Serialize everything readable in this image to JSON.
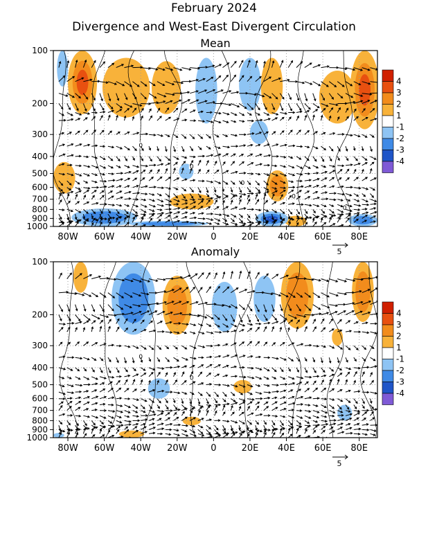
{
  "header": {
    "title": "February 2024",
    "subtitle": "Divergence and West-East Divergent Circulation"
  },
  "colors": {
    "shading": [
      "#7f5ad6",
      "#1f55c8",
      "#3f8ae6",
      "#8ec4f4",
      "#ffffff",
      "#f8b23a",
      "#f28c1c",
      "#e85010",
      "#d02000"
    ],
    "contour": "#000000",
    "grid": "#9a9a9a"
  },
  "chart_data": [
    {
      "type": "heatmap",
      "title": "Mean",
      "x_ticks": [
        "80W",
        "60W",
        "40W",
        "20W",
        "0",
        "20E",
        "40E",
        "60E",
        "80E"
      ],
      "x_tick_values": [
        -80,
        -60,
        -40,
        -20,
        0,
        20,
        40,
        60,
        80
      ],
      "xlim": [
        -88,
        90
      ],
      "y_ticks": [
        "100",
        "200",
        "300",
        "400",
        "500",
        "600",
        "700",
        "800",
        "900",
        "1000"
      ],
      "y_tick_values": [
        100,
        200,
        300,
        400,
        500,
        600,
        700,
        800,
        900,
        1000
      ],
      "ylim": [
        1000,
        100
      ],
      "y_scale": "log",
      "colorbar": {
        "levels": [
          "4",
          "3",
          "2",
          "1",
          "-1",
          "-2",
          "-3",
          "-4"
        ]
      },
      "vector_reference": {
        "label": "5",
        "value": 5
      },
      "arrow_levels": [
        125,
        150,
        175,
        200,
        225,
        250,
        300,
        350,
        400,
        450,
        500,
        550,
        600,
        650,
        700,
        750,
        800,
        850,
        900,
        950,
        1000
      ],
      "contour_labels": [
        "0",
        "0",
        "0",
        "0",
        "0"
      ],
      "divergence_regions": [
        {
          "lon": -72,
          "p": 140,
          "lon_half": 8,
          "p_lo": 100,
          "p_hi": 230,
          "value": 3.3
        },
        {
          "lon": -48,
          "p": 150,
          "lon_half": 13,
          "p_lo": 110,
          "p_hi": 240,
          "value": 1.6
        },
        {
          "lon": -26,
          "p": 160,
          "lon_half": 8,
          "p_lo": 115,
          "p_hi": 230,
          "value": 1.4
        },
        {
          "lon": 83,
          "p": 150,
          "lon_half": 8,
          "p_lo": 100,
          "p_hi": 280,
          "value": 3.3
        },
        {
          "lon": 68,
          "p": 180,
          "lon_half": 10,
          "p_lo": 130,
          "p_hi": 260,
          "value": 1.7
        },
        {
          "lon": 32,
          "p": 160,
          "lon_half": 6,
          "p_lo": 110,
          "p_hi": 230,
          "value": 1.5
        },
        {
          "lon": -82,
          "p": 520,
          "lon_half": 6,
          "p_lo": 430,
          "p_hi": 650,
          "value": 1.3
        },
        {
          "lon": 35,
          "p": 560,
          "lon_half": 6,
          "p_lo": 480,
          "p_hi": 720,
          "value": 2.2
        },
        {
          "lon": -12,
          "p": 720,
          "lon_half": 12,
          "p_lo": 650,
          "p_hi": 800,
          "value": 1.2
        },
        {
          "lon": 45,
          "p": 960,
          "lon_half": 6,
          "p_lo": 870,
          "p_hi": 1000,
          "value": 1.6
        },
        {
          "lon": -4,
          "p": 180,
          "lon_half": 6,
          "p_lo": 110,
          "p_hi": 260,
          "value": -1.5
        },
        {
          "lon": 20,
          "p": 150,
          "lon_half": 6,
          "p_lo": 110,
          "p_hi": 220,
          "value": -1.3
        },
        {
          "lon": -83,
          "p": 120,
          "lon_half": 3,
          "p_lo": 100,
          "p_hi": 160,
          "value": -1.2
        },
        {
          "lon": -15,
          "p": 480,
          "lon_half": 4,
          "p_lo": 440,
          "p_hi": 540,
          "value": -1.2
        },
        {
          "lon": 25,
          "p": 290,
          "lon_half": 5,
          "p_lo": 250,
          "p_hi": 340,
          "value": -1.1
        },
        {
          "lon": -60,
          "p": 900,
          "lon_half": 18,
          "p_lo": 790,
          "p_hi": 1000,
          "value": -2.4
        },
        {
          "lon": -25,
          "p": 970,
          "lon_half": 22,
          "p_lo": 930,
          "p_hi": 1000,
          "value": -2.2
        },
        {
          "lon": 32,
          "p": 920,
          "lon_half": 9,
          "p_lo": 820,
          "p_hi": 1000,
          "value": -3.2
        },
        {
          "lon": 82,
          "p": 940,
          "lon_half": 8,
          "p_lo": 850,
          "p_hi": 1000,
          "value": -2.1
        }
      ]
    },
    {
      "type": "heatmap",
      "title": "Anomaly",
      "x_ticks": [
        "80W",
        "60W",
        "40W",
        "20W",
        "0",
        "20E",
        "40E",
        "60E",
        "80E"
      ],
      "x_tick_values": [
        -80,
        -60,
        -40,
        -20,
        0,
        20,
        40,
        60,
        80
      ],
      "xlim": [
        -88,
        90
      ],
      "y_ticks": [
        "100",
        "200",
        "300",
        "400",
        "500",
        "600",
        "700",
        "800",
        "900",
        "1000"
      ],
      "y_tick_values": [
        100,
        200,
        300,
        400,
        500,
        600,
        700,
        800,
        900,
        1000
      ],
      "ylim": [
        1000,
        100
      ],
      "y_scale": "log",
      "colorbar": {
        "levels": [
          "4",
          "3",
          "2",
          "1",
          "-1",
          "-2",
          "-3",
          "-4"
        ]
      },
      "vector_reference": {
        "label": "5",
        "value": 5
      },
      "arrow_levels": [
        125,
        150,
        175,
        200,
        225,
        250,
        300,
        350,
        400,
        450,
        500,
        550,
        600,
        650,
        700,
        750,
        800,
        850,
        900,
        950,
        1000
      ],
      "contour_labels": [
        "0",
        "0"
      ],
      "divergence_regions": [
        {
          "lon": -73,
          "p": 120,
          "lon_half": 4,
          "p_lo": 100,
          "p_hi": 150,
          "value": 1.4
        },
        {
          "lon": -20,
          "p": 170,
          "lon_half": 8,
          "p_lo": 120,
          "p_hi": 260,
          "value": 2.2
        },
        {
          "lon": 46,
          "p": 140,
          "lon_half": 9,
          "p_lo": 100,
          "p_hi": 240,
          "value": 2.5
        },
        {
          "lon": 82,
          "p": 140,
          "lon_half": 6,
          "p_lo": 100,
          "p_hi": 220,
          "value": 2.0
        },
        {
          "lon": 68,
          "p": 260,
          "lon_half": 3,
          "p_lo": 240,
          "p_hi": 300,
          "value": 1.3
        },
        {
          "lon": 16,
          "p": 510,
          "lon_half": 5,
          "p_lo": 470,
          "p_hi": 560,
          "value": 1.2
        },
        {
          "lon": -12,
          "p": 800,
          "lon_half": 5,
          "p_lo": 760,
          "p_hi": 850,
          "value": 1.1
        },
        {
          "lon": -45,
          "p": 960,
          "lon_half": 7,
          "p_lo": 910,
          "p_hi": 1000,
          "value": 1.6
        },
        {
          "lon": -44,
          "p": 170,
          "lon_half": 12,
          "p_lo": 100,
          "p_hi": 260,
          "value": -2.1
        },
        {
          "lon": 6,
          "p": 180,
          "lon_half": 7,
          "p_lo": 130,
          "p_hi": 250,
          "value": -1.5
        },
        {
          "lon": 28,
          "p": 160,
          "lon_half": 6,
          "p_lo": 120,
          "p_hi": 220,
          "value": -1.4
        },
        {
          "lon": -30,
          "p": 520,
          "lon_half": 6,
          "p_lo": 460,
          "p_hi": 600,
          "value": -1.1
        },
        {
          "lon": 72,
          "p": 720,
          "lon_half": 4,
          "p_lo": 650,
          "p_hi": 800,
          "value": -1.1
        },
        {
          "lon": -85,
          "p": 980,
          "lon_half": 3,
          "p_lo": 940,
          "p_hi": 1000,
          "value": -1.2
        }
      ]
    }
  ]
}
